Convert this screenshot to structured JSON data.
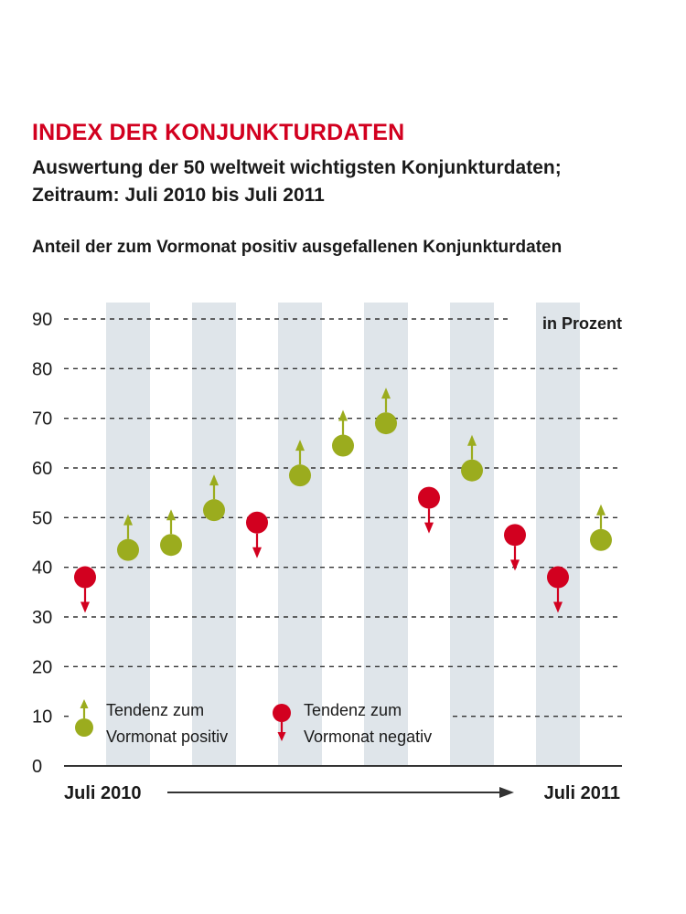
{
  "title": "INDEX DER KONJUNKTURDATEN",
  "subtitle_line1": "Auswertung der 50 weltweit wichtigsten Konjunkturdaten;",
  "subtitle_line2": "Zeitraum: Juli 2010 bis Juli 2011",
  "caption": "Anteil der zum Vormonat positiv ausgefallenen Konjunkturdaten",
  "colors": {
    "positive": "#9bac1e",
    "negative": "#d2001f",
    "band": "#dfe5ea",
    "grid": "#333333",
    "text": "#1a1a1a"
  },
  "chart_data": {
    "type": "scatter",
    "unit_label": "in Prozent",
    "ylim": [
      0,
      90
    ],
    "yticks": [
      0,
      10,
      20,
      30,
      40,
      50,
      60,
      70,
      80,
      90
    ],
    "grid": true,
    "start_label": "Juli 2010",
    "end_label": "Juli 2011",
    "series": [
      {
        "values": [
          38,
          43.5,
          44.5,
          51.5,
          49,
          58.5,
          64.5,
          69,
          54,
          59.5,
          46.5,
          38,
          45.5
        ],
        "trend": [
          "down",
          "up",
          "up",
          "up",
          "down",
          "up",
          "up",
          "up",
          "down",
          "up",
          "down",
          "down",
          "up"
        ]
      }
    ],
    "legend": [
      {
        "line1": "Tendenz zum",
        "line2": "Vormonat positiv",
        "trend": "up"
      },
      {
        "line1": "Tendenz zum",
        "line2": "Vormonat negativ",
        "trend": "down"
      }
    ],
    "legend_position": "bottom-left"
  }
}
